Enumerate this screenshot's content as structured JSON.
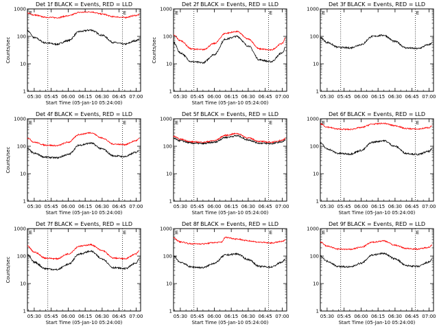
{
  "window_title": "",
  "colors": {
    "events": "#000000",
    "lld": "#ff0000",
    "background": "#ffffff",
    "axes": "#000000"
  },
  "chart_data": [
    {
      "type": "line",
      "title": "Det 1f BLACK = Events, RED = LLD",
      "xlabel": "Start Time (05-Jan-10 05:24:00)",
      "ylabel": "Counts/sec",
      "yscale": "log",
      "ylim": [
        1,
        1000
      ],
      "xlim": [
        "05:24",
        "07:04"
      ],
      "x_ticks": [
        "05:30",
        "05:45",
        "06:00",
        "06:15",
        "06:30",
        "06:45",
        "07:00"
      ],
      "y_ticks": [
        "1",
        "10",
        "100",
        "1000"
      ],
      "marker_lines": [
        "05:42",
        "06:48"
      ],
      "flag_labels": [
        {
          "time": "05:25",
          "label": "E"
        },
        {
          "time": "06:48",
          "label": "E"
        }
      ],
      "grid": false,
      "legend": "in title",
      "series": [
        {
          "name": "Events",
          "color": "#000000",
          "x": [
            "05:24",
            "05:30",
            "05:40",
            "05:50",
            "06:00",
            "06:10",
            "06:20",
            "06:30",
            "06:40",
            "06:50",
            "07:00",
            "07:03"
          ],
          "y": [
            160,
            90,
            58,
            52,
            70,
            150,
            170,
            110,
            60,
            52,
            70,
            80
          ]
        },
        {
          "name": "LLD",
          "color": "#ff0000",
          "x": [
            "05:24",
            "05:30",
            "05:40",
            "05:50",
            "06:00",
            "06:10",
            "06:20",
            "06:30",
            "06:40",
            "06:50",
            "07:00",
            "07:03"
          ],
          "y": [
            700,
            600,
            500,
            480,
            560,
            750,
            780,
            650,
            520,
            490,
            580,
            620
          ]
        }
      ]
    },
    {
      "type": "line",
      "title": "Det 2f BLACK = Events, RED = LLD",
      "xlabel": "Start Time (05-Jan-10 05:24:00)",
      "ylabel": "Counts/sec",
      "yscale": "log",
      "ylim": [
        1,
        1000
      ],
      "xlim": [
        "05:24",
        "07:04"
      ],
      "x_ticks": [
        "05:30",
        "05:45",
        "06:00",
        "06:15",
        "06:30",
        "06:45",
        "07:00"
      ],
      "y_ticks": [
        "1",
        "10",
        "100",
        "1000"
      ],
      "marker_lines": [
        "05:42",
        "06:48"
      ],
      "flag_labels": [
        {
          "time": "05:25",
          "label": "E"
        },
        {
          "time": "06:48",
          "label": "E"
        }
      ],
      "grid": false,
      "legend": "in title",
      "series": [
        {
          "name": "Events",
          "color": "#000000",
          "x": [
            "05:24",
            "05:30",
            "05:40",
            "05:50",
            "06:00",
            "06:10",
            "06:20",
            "06:30",
            "06:40",
            "06:50",
            "07:00",
            "07:03"
          ],
          "y": [
            60,
            25,
            12,
            11,
            22,
            80,
            100,
            45,
            14,
            12,
            25,
            40
          ]
        },
        {
          "name": "LLD",
          "color": "#ff0000",
          "x": [
            "05:24",
            "05:30",
            "05:40",
            "05:50",
            "06:00",
            "06:10",
            "06:20",
            "06:30",
            "06:40",
            "06:50",
            "07:00",
            "07:03"
          ],
          "y": [
            110,
            70,
            35,
            33,
            55,
            130,
            150,
            80,
            35,
            32,
            55,
            90
          ]
        }
      ]
    },
    {
      "type": "line",
      "title": "Det 3f BLACK = Events, RED = LLD",
      "xlabel": "",
      "ylabel": "",
      "yscale": "log",
      "ylim": [
        1,
        1000
      ],
      "xlim": [
        "05:24",
        "07:04"
      ],
      "x_ticks": [
        "05:30",
        "05:45",
        "06:00",
        "06:15",
        "06:30",
        "06:45",
        "07:00"
      ],
      "y_ticks": [
        "1",
        "10",
        "100",
        "1000"
      ],
      "marker_lines": [
        "05:42",
        "06:48"
      ],
      "flag_labels": [
        {
          "time": "05:25",
          "label": "E"
        },
        {
          "time": "06:48",
          "label": "E"
        }
      ],
      "grid": false,
      "legend": "in title",
      "series": [
        {
          "name": "Events",
          "color": "#000000",
          "x": [
            "05:24",
            "05:30",
            "05:40",
            "05:50",
            "06:00",
            "06:10",
            "06:20",
            "06:30",
            "06:40",
            "06:50",
            "07:00",
            "07:03"
          ],
          "y": [
            90,
            60,
            40,
            38,
            50,
            100,
            110,
            65,
            38,
            36,
            50,
            60
          ]
        }
      ]
    },
    {
      "type": "line",
      "title": "Det 4f BLACK = Events, RED = LLD",
      "xlabel": "Start Time (05-Jan-10 05:24:00)",
      "ylabel": "Counts/sec",
      "yscale": "log",
      "ylim": [
        1,
        1000
      ],
      "xlim": [
        "05:24",
        "07:04"
      ],
      "x_ticks": [
        "05:30",
        "05:45",
        "06:00",
        "06:15",
        "06:30",
        "06:45",
        "07:00"
      ],
      "y_ticks": [
        "1",
        "10",
        "100",
        "1000"
      ],
      "marker_lines": [
        "05:42",
        "06:48"
      ],
      "flag_labels": [
        {
          "time": "05:25",
          "label": "E"
        },
        {
          "time": "06:48",
          "label": "E"
        }
      ],
      "grid": false,
      "legend": "in title",
      "series": [
        {
          "name": "Events",
          "color": "#000000",
          "x": [
            "05:24",
            "05:30",
            "05:40",
            "05:50",
            "06:00",
            "06:10",
            "06:20",
            "06:30",
            "06:40",
            "06:50",
            "07:00",
            "07:03"
          ],
          "y": [
            80,
            55,
            40,
            38,
            50,
            110,
            130,
            80,
            45,
            42,
            60,
            75
          ]
        },
        {
          "name": "LLD",
          "color": "#ff0000",
          "x": [
            "05:24",
            "05:30",
            "05:40",
            "05:50",
            "06:00",
            "06:10",
            "06:20",
            "06:30",
            "06:40",
            "06:50",
            "07:00",
            "07:03"
          ],
          "y": [
            200,
            140,
            110,
            105,
            140,
            270,
            310,
            200,
            120,
            115,
            160,
            190
          ]
        }
      ]
    },
    {
      "type": "line",
      "title": "Det 5f BLACK = Events, RED = LLD",
      "xlabel": "Start Time (05-Jan-10 05:24:00)",
      "ylabel": "",
      "yscale": "log",
      "ylim": [
        1,
        1000
      ],
      "xlim": [
        "05:24",
        "07:04"
      ],
      "x_ticks": [
        "05:30",
        "05:45",
        "06:00",
        "06:15",
        "06:30",
        "06:45",
        "07:00"
      ],
      "y_ticks": [
        "1",
        "10",
        "100",
        "1000"
      ],
      "marker_lines": [
        "05:42",
        "06:48"
      ],
      "flag_labels": [
        {
          "time": "05:25",
          "label": "E"
        },
        {
          "time": "06:48",
          "label": "E"
        }
      ],
      "grid": false,
      "legend": "in title",
      "series": [
        {
          "name": "Events",
          "color": "#000000",
          "x": [
            "05:24",
            "05:30",
            "05:40",
            "05:50",
            "06:00",
            "06:10",
            "06:20",
            "06:30",
            "06:40",
            "06:50",
            "07:00",
            "07:03"
          ],
          "y": [
            190,
            160,
            130,
            125,
            140,
            210,
            240,
            170,
            130,
            125,
            145,
            170
          ]
        },
        {
          "name": "LLD",
          "color": "#ff0000",
          "x": [
            "05:24",
            "05:30",
            "05:40",
            "05:50",
            "06:00",
            "06:10",
            "06:20",
            "06:30",
            "06:40",
            "06:50",
            "07:00",
            "07:03"
          ],
          "y": [
            230,
            180,
            145,
            140,
            160,
            250,
            290,
            200,
            150,
            140,
            165,
            200
          ]
        }
      ]
    },
    {
      "type": "line",
      "title": "Det 6f BLACK = Events, RED = LLD",
      "xlabel": "Start Time (05-Jan-10 05:24:00)",
      "ylabel": "",
      "yscale": "log",
      "ylim": [
        1,
        1000
      ],
      "xlim": [
        "05:24",
        "07:04"
      ],
      "x_ticks": [
        "05:30",
        "05:45",
        "06:00",
        "06:15",
        "06:30",
        "06:45",
        "07:00"
      ],
      "y_ticks": [
        "1",
        "10",
        "100",
        "1000"
      ],
      "marker_lines": [
        "05:42",
        "06:48"
      ],
      "flag_labels": [
        {
          "time": "05:25",
          "label": "E"
        },
        {
          "time": "06:48",
          "label": "E"
        }
      ],
      "grid": false,
      "legend": "in title",
      "series": [
        {
          "name": "Events",
          "color": "#000000",
          "x": [
            "05:24",
            "05:30",
            "05:40",
            "05:50",
            "06:00",
            "06:10",
            "06:20",
            "06:30",
            "06:40",
            "06:50",
            "07:00",
            "07:03"
          ],
          "y": [
            130,
            80,
            55,
            52,
            70,
            140,
            160,
            100,
            55,
            50,
            65,
            80
          ]
        },
        {
          "name": "LLD",
          "color": "#ff0000",
          "x": [
            "05:24",
            "05:30",
            "05:40",
            "05:50",
            "06:00",
            "06:10",
            "06:20",
            "06:30",
            "06:40",
            "06:50",
            "07:00",
            "07:03"
          ],
          "y": [
            650,
            500,
            420,
            410,
            480,
            640,
            680,
            560,
            440,
            420,
            480,
            560
          ]
        }
      ]
    },
    {
      "type": "line",
      "title": "Det 7f BLACK = Events, RED = LLD",
      "xlabel": "Start Time (05-Jan-10 05:24:00)",
      "ylabel": "Counts/sec",
      "yscale": "log",
      "ylim": [
        1,
        1000
      ],
      "xlim": [
        "05:24",
        "07:04"
      ],
      "x_ticks": [
        "05:30",
        "05:45",
        "06:00",
        "06:15",
        "06:30",
        "06:45",
        "07:00"
      ],
      "y_ticks": [
        "1",
        "10",
        "100",
        "1000"
      ],
      "marker_lines": [
        "05:42",
        "06:48"
      ],
      "flag_labels": [
        {
          "time": "05:25",
          "label": "E"
        },
        {
          "time": "06:48",
          "label": "E"
        }
      ],
      "grid": false,
      "legend": "in title",
      "series": [
        {
          "name": "Events",
          "color": "#000000",
          "x": [
            "05:24",
            "05:30",
            "05:40",
            "05:50",
            "06:00",
            "06:10",
            "06:20",
            "06:30",
            "06:40",
            "06:50",
            "07:00",
            "07:03"
          ],
          "y": [
            110,
            60,
            35,
            32,
            50,
            120,
            150,
            80,
            38,
            35,
            55,
            80
          ]
        },
        {
          "name": "LLD",
          "color": "#ff0000",
          "x": [
            "05:24",
            "05:30",
            "05:40",
            "05:50",
            "06:00",
            "06:10",
            "06:20",
            "06:30",
            "06:40",
            "06:50",
            "07:00",
            "07:03"
          ],
          "y": [
            230,
            140,
            85,
            80,
            120,
            230,
            260,
            160,
            85,
            80,
            120,
            160
          ]
        }
      ]
    },
    {
      "type": "line",
      "title": "Det 8f BLACK = Events, RED = LLD",
      "xlabel": "Start Time (05-Jan-10 05:24:00)",
      "ylabel": "",
      "yscale": "log",
      "ylim": [
        1,
        1000
      ],
      "xlim": [
        "05:24",
        "07:04"
      ],
      "x_ticks": [
        "05:30",
        "05:45",
        "06:00",
        "06:15",
        "06:30",
        "06:45",
        "07:00"
      ],
      "y_ticks": [
        "1",
        "10",
        "100",
        "1000"
      ],
      "marker_lines": [
        "05:42",
        "06:48"
      ],
      "flag_labels": [
        {
          "time": "05:25",
          "label": "E"
        },
        {
          "time": "06:48",
          "label": "E"
        }
      ],
      "grid": false,
      "legend": "in title",
      "series": [
        {
          "name": "Events",
          "color": "#000000",
          "x": [
            "05:24",
            "05:30",
            "05:40",
            "05:50",
            "06:00",
            "06:10",
            "06:20",
            "06:30",
            "06:40",
            "06:50",
            "07:00",
            "07:03"
          ],
          "y": [
            100,
            60,
            40,
            38,
            55,
            110,
            120,
            75,
            42,
            40,
            60,
            80
          ]
        },
        {
          "name": "LLD",
          "color": "#ff0000",
          "x": [
            "05:24",
            "05:30",
            "05:40",
            "05:50",
            "06:00",
            "06:06",
            "06:10",
            "06:20",
            "06:30",
            "06:40",
            "06:50",
            "07:00",
            "07:03"
          ],
          "y": [
            450,
            330,
            280,
            280,
            310,
            320,
            480,
            420,
            360,
            320,
            300,
            340,
            380
          ]
        }
      ]
    },
    {
      "type": "line",
      "title": "Det 9f BLACK = Events, RED = LLD",
      "xlabel": "Start Time (05-Jan-10 05:24:00)",
      "ylabel": "",
      "yscale": "log",
      "ylim": [
        1,
        1000
      ],
      "xlim": [
        "05:24",
        "07:04"
      ],
      "x_ticks": [
        "05:30",
        "05:45",
        "06:00",
        "06:15",
        "06:30",
        "06:45",
        "07:00"
      ],
      "y_ticks": [
        "1",
        "10",
        "100",
        "1000"
      ],
      "marker_lines": [
        "05:42",
        "06:48"
      ],
      "flag_labels": [
        {
          "time": "05:25",
          "label": "E"
        },
        {
          "time": "06:48",
          "label": "E"
        }
      ],
      "grid": false,
      "legend": "in title",
      "series": [
        {
          "name": "Events",
          "color": "#000000",
          "x": [
            "05:24",
            "05:30",
            "05:40",
            "05:50",
            "06:00",
            "06:10",
            "06:20",
            "06:30",
            "06:40",
            "06:50",
            "07:00",
            "07:03"
          ],
          "y": [
            100,
            65,
            42,
            40,
            55,
            110,
            125,
            80,
            45,
            42,
            60,
            80
          ]
        },
        {
          "name": "LLD",
          "color": "#ff0000",
          "x": [
            "05:24",
            "05:30",
            "05:40",
            "05:50",
            "06:00",
            "06:10",
            "06:20",
            "06:30",
            "06:40",
            "06:50",
            "07:00",
            "07:03"
          ],
          "y": [
            320,
            230,
            180,
            175,
            210,
            320,
            360,
            250,
            190,
            180,
            210,
            260
          ]
        }
      ]
    }
  ]
}
